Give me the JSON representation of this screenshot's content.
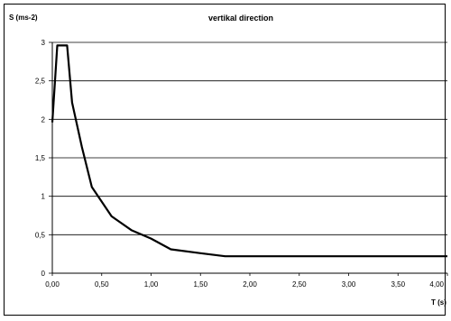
{
  "chart_data": {
    "type": "line",
    "title": "vertikal direction",
    "ylabel": "S (ms-2)",
    "xlabel": "T (s)",
    "xlim": [
      0,
      4
    ],
    "ylim": [
      0,
      3
    ],
    "x_ticks": [
      "0,00",
      "0,50",
      "1,00",
      "1,50",
      "2,00",
      "2,50",
      "3,00",
      "3,50",
      "4,00"
    ],
    "y_ticks": [
      "0",
      "0,5",
      "1",
      "1,5",
      "2",
      "2,5",
      "3"
    ],
    "grid": "horizontal",
    "series": [
      {
        "x": [
          0.0,
          0.05,
          0.15,
          0.2,
          0.3,
          0.4,
          0.6,
          0.8,
          1.0,
          1.2,
          1.5,
          1.75,
          2.0,
          3.0,
          4.0
        ],
        "y": [
          1.96,
          2.96,
          2.96,
          2.22,
          1.64,
          1.12,
          0.74,
          0.56,
          0.45,
          0.31,
          0.26,
          0.22,
          0.22,
          0.22,
          0.22
        ]
      }
    ]
  }
}
